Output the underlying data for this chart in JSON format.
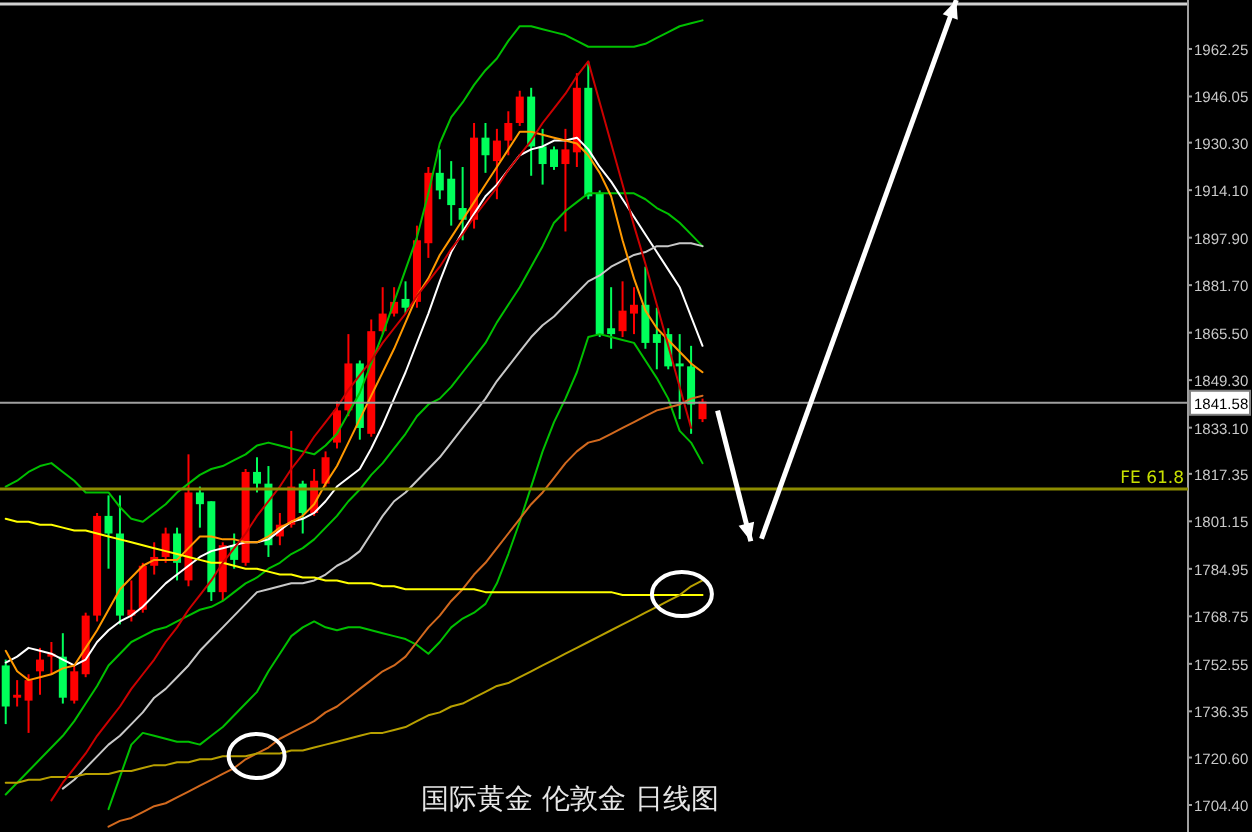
{
  "chart_data": {
    "type": "candlestick",
    "title": "国际黄金 伦敦金 日线图",
    "categories": [
      null,
      null,
      null,
      null,
      null,
      null,
      null,
      null,
      null,
      null,
      null,
      null,
      null,
      null,
      null,
      null,
      null,
      null,
      null,
      null,
      null,
      null,
      null,
      null,
      null,
      null,
      null,
      null,
      null,
      null,
      null,
      null,
      null,
      null,
      null,
      null,
      null,
      null,
      null,
      null,
      null,
      null,
      null,
      null,
      null,
      null,
      null,
      null,
      null,
      null,
      null,
      null,
      null,
      null,
      null,
      null,
      null,
      null,
      null,
      null,
      null,
      null,
      null,
      null,
      null,
      null,
      null,
      null,
      null,
      null,
      null,
      null,
      null,
      null,
      null,
      null,
      null,
      null,
      null,
      null,
      null,
      null,
      null,
      null,
      null,
      null,
      null,
      null,
      null,
      null,
      null,
      null,
      null,
      null,
      null,
      null,
      null,
      null,
      null,
      null,
      null,
      null,
      null,
      null
    ],
    "ohlc": [
      [
        1752,
        1754,
        1732,
        1738
      ],
      [
        1741,
        1747,
        1738,
        1742
      ],
      [
        1740,
        1749,
        1729,
        1747
      ],
      [
        1750,
        1758,
        1742,
        1754
      ],
      [
        1755,
        1760,
        1749,
        1756
      ],
      [
        1755,
        1763,
        1739,
        1741
      ],
      [
        1740,
        1752,
        1739,
        1750
      ],
      [
        1749,
        1770,
        1748,
        1769
      ],
      [
        1769,
        1804,
        1767,
        1803
      ],
      [
        1803,
        1810,
        1785,
        1797
      ],
      [
        1797,
        1810,
        1766,
        1769
      ],
      [
        1769,
        1781,
        1767,
        1771
      ],
      [
        1771,
        1787,
        1770,
        1786
      ],
      [
        1786,
        1794,
        1783,
        1789
      ],
      [
        1789,
        1799,
        1787,
        1797
      ],
      [
        1797,
        1799,
        1781,
        1787
      ],
      [
        1781,
        1824,
        1779,
        1811
      ],
      [
        1811,
        1813,
        1799,
        1807
      ],
      [
        1808,
        1808,
        1774,
        1777
      ],
      [
        1777,
        1794,
        1774,
        1793
      ],
      [
        1793,
        1797,
        1785,
        1788
      ],
      [
        1787,
        1819,
        1786,
        1818
      ],
      [
        1818,
        1823,
        1811,
        1814
      ],
      [
        1814,
        1820,
        1789,
        1793
      ],
      [
        1796,
        1804,
        1793,
        1800
      ],
      [
        1800,
        1832,
        1799,
        1813
      ],
      [
        1814,
        1815,
        1797,
        1804
      ],
      [
        1804,
        1819,
        1803,
        1815
      ],
      [
        1814,
        1825,
        1813,
        1823
      ],
      [
        1828,
        1842,
        1826,
        1839
      ],
      [
        1839,
        1865,
        1837,
        1855
      ],
      [
        1855,
        1856,
        1829,
        1833
      ],
      [
        1831,
        1870,
        1830,
        1866
      ],
      [
        1866,
        1881,
        1865,
        1872
      ],
      [
        1872,
        1881,
        1871,
        1876
      ],
      [
        1877,
        1883,
        1872,
        1874
      ],
      [
        1876,
        1902,
        1874,
        1897
      ],
      [
        1896,
        1922,
        1891,
        1920
      ],
      [
        1920,
        1928,
        1911,
        1914
      ],
      [
        1918,
        1924,
        1902,
        1909
      ],
      [
        1908,
        1922,
        1897,
        1904
      ],
      [
        1904,
        1937,
        1901,
        1932
      ],
      [
        1932,
        1937,
        1920,
        1926
      ],
      [
        1924,
        1935,
        1911,
        1931
      ],
      [
        1931,
        1941,
        1926,
        1937
      ],
      [
        1937,
        1948,
        1936,
        1946
      ],
      [
        1946,
        1949,
        1919,
        1929
      ],
      [
        1929,
        1935,
        1916,
        1923
      ],
      [
        1928,
        1929,
        1921,
        1922
      ],
      [
        1923,
        1935,
        1900,
        1928
      ],
      [
        1927,
        1954,
        1922,
        1949
      ],
      [
        1949,
        1958,
        1911,
        1912
      ],
      [
        1913,
        1914,
        1864,
        1865
      ],
      [
        1867,
        1881,
        1860,
        1865
      ],
      [
        1866,
        1883,
        1864,
        1873
      ],
      [
        1872,
        1881,
        1865,
        1875
      ],
      [
        1875,
        1888,
        1860,
        1862
      ],
      [
        1865,
        1874,
        1853,
        1862
      ],
      [
        1865,
        1867,
        1853,
        1854
      ],
      [
        1855,
        1865,
        1836,
        1854
      ],
      [
        1854,
        1861,
        1831,
        1841
      ],
      [
        1836,
        1843,
        1835,
        1842
      ],
      null,
      null,
      null,
      null,
      null,
      null,
      null,
      null,
      null,
      null,
      null,
      null,
      null,
      null,
      null,
      null,
      null,
      null,
      null,
      null,
      null,
      null,
      null,
      null,
      null,
      null,
      null,
      null,
      null,
      null,
      null,
      null,
      null,
      null,
      null,
      null,
      null,
      null,
      null,
      null,
      null,
      null
    ],
    "colors": [
      "#00ff5a",
      "#ff0000",
      "#ff0000",
      "#ff0000",
      "#ff0000",
      "#00ff5a",
      "#ff0000",
      "#ff0000",
      "#ff0000",
      "#00ff5a",
      "#00ff5a",
      "#ff0000",
      "#ff0000",
      "#ff0000",
      "#ff0000",
      "#00ff5a",
      "#ff0000",
      "#00ff5a",
      "#00ff5a",
      "#ff0000",
      "#00ff5a",
      "#ff0000",
      "#00ff5a",
      "#00ff5a",
      "#ff0000",
      "#ff0000",
      "#00ff5a",
      "#ff0000",
      "#ff0000",
      "#ff0000",
      "#ff0000",
      "#00ff5a",
      "#ff0000",
      "#ff0000",
      "#ff0000",
      "#00ff5a",
      "#ff0000",
      "#ff0000",
      "#00ff5a",
      "#00ff5a",
      "#00ff5a",
      "#ff0000",
      "#00ff5a",
      "#ff0000",
      "#ff0000",
      "#ff0000",
      "#00ff5a",
      "#00ff5a",
      "#00ff5a",
      "#ff0000",
      "#ff0000",
      "#00ff5a",
      "#00ff5a",
      "#00ff5a",
      "#ff0000",
      "#ff0000",
      "#00ff5a",
      "#00ff5a",
      "#00ff5a",
      "#00ff5a",
      "#00ff5a",
      "#ff0000",
      null,
      null,
      null,
      null,
      null,
      null,
      null,
      null,
      null,
      null,
      null,
      null,
      null,
      null,
      null,
      null,
      null,
      null,
      null,
      null,
      null,
      null,
      null,
      null,
      null,
      null,
      null,
      null,
      null,
      null,
      null,
      null,
      null,
      null,
      null,
      null,
      null,
      null,
      null,
      null,
      null,
      null
    ],
    "series": [
      {
        "type": "line",
        "color": "#00c000",
        "values": [
          1813,
          1815,
          1818,
          1820,
          1821,
          1818,
          1815,
          1811,
          1811,
          1811,
          1806,
          1802,
          1801,
          1804,
          1807,
          1811,
          1814,
          1817,
          1819,
          1820,
          1822,
          1824,
          1827,
          1828,
          1827,
          1826,
          1825,
          1824,
          1827,
          1831,
          1838,
          1845,
          1855,
          1865,
          1876,
          1887,
          1898,
          1913,
          1930,
          1939,
          1944,
          1950,
          1955,
          1959,
          1965,
          1970,
          1970,
          1969,
          1968,
          1967,
          1965,
          1963,
          1963,
          1963,
          1963,
          1963,
          1964,
          1966,
          1968,
          1970,
          1971,
          1972,
          null,
          null,
          null,
          null,
          null,
          null,
          null,
          null,
          null,
          null,
          null,
          null,
          null,
          null,
          null,
          null,
          null,
          null,
          null,
          null,
          null,
          null,
          null,
          null,
          null,
          null,
          null,
          null,
          null,
          null,
          null,
          null,
          null,
          null,
          null,
          null,
          null,
          null,
          null,
          null,
          null,
          null
        ]
      },
      {
        "type": "line",
        "color": "#00c000",
        "values": [
          1708,
          1712,
          1716,
          1720,
          1724,
          1728,
          1733,
          1739,
          1745,
          1752,
          1756,
          1760,
          1762,
          1764,
          1765,
          1767,
          1769,
          1771,
          1772,
          1774,
          1777,
          1780,
          1782,
          1785,
          1787,
          1790,
          1792,
          1795,
          1799,
          1803,
          1808,
          1812,
          1817,
          1821,
          1826,
          1831,
          1837,
          1841,
          1843,
          1847,
          1852,
          1857,
          1862,
          1869,
          1875,
          1881,
          1888,
          1895,
          1903,
          1907,
          1910,
          1913,
          1913,
          1913,
          1913,
          1913,
          1911,
          1908,
          1906,
          1903,
          1899,
          1895,
          null,
          null,
          null,
          null,
          null,
          null,
          null,
          null,
          null,
          null,
          null,
          null,
          null,
          null,
          null,
          null,
          null,
          null,
          null,
          null,
          null,
          null,
          null,
          null,
          null,
          null,
          null,
          null,
          null,
          null,
          null,
          null,
          null,
          null,
          null,
          null,
          null,
          null,
          null,
          null,
          null,
          null
        ]
      },
      {
        "type": "line",
        "color": "#00c000",
        "values": [
          null,
          null,
          null,
          null,
          null,
          null,
          null,
          null,
          null,
          1703,
          1714,
          1725,
          1729,
          1728,
          1727,
          1726,
          1726,
          1725,
          1728,
          1731,
          1735,
          1739,
          1743,
          1750,
          1756,
          1762,
          1765,
          1767,
          1765,
          1764,
          1765,
          1765,
          1764,
          1763,
          1762,
          1761,
          1759,
          1756,
          1760,
          1765,
          1768,
          1770,
          1773,
          1780,
          1790,
          1801,
          1813,
          1825,
          1835,
          1843,
          1852,
          1864,
          1865,
          1864,
          1863,
          1862,
          1856,
          1850,
          1843,
          1832,
          1828,
          1821,
          null,
          null,
          null,
          null,
          null,
          null,
          null,
          null,
          null,
          null,
          null,
          null,
          null,
          null,
          null,
          null,
          null,
          null,
          null,
          null,
          null,
          null,
          null,
          null,
          null,
          null,
          null,
          null,
          null,
          null,
          null,
          null,
          null,
          null,
          null,
          null,
          null,
          null,
          null,
          null,
          null,
          null
        ]
      },
      {
        "type": "line",
        "color": "#ffffff",
        "values": [
          1753,
          1755,
          1758,
          1757,
          1756,
          1754,
          1752,
          1754,
          1760,
          1764,
          1767,
          1769,
          1772,
          1776,
          1780,
          1783,
          1786,
          1789,
          1791,
          1792,
          1793,
          1794,
          1794,
          1795,
          1798,
          1801,
          1802,
          1804,
          1808,
          1813,
          1816,
          1819,
          1826,
          1834,
          1843,
          1852,
          1862,
          1872,
          1883,
          1893,
          1900,
          1906,
          1912,
          1916,
          1921,
          1926,
          1928,
          1929,
          1931,
          1931,
          1932,
          1928,
          1922,
          1917,
          1911,
          1905,
          1899,
          1893,
          1887,
          1881,
          1871,
          1861,
          null,
          null,
          null,
          null,
          null,
          null,
          null,
          null,
          null,
          null,
          null,
          null,
          null,
          null,
          null,
          null,
          null,
          null,
          null,
          null,
          null,
          null,
          null,
          null,
          null,
          null,
          null,
          null,
          null,
          null,
          null,
          null,
          null,
          null,
          null,
          null,
          null,
          null,
          null,
          null,
          null,
          null
        ]
      },
      {
        "type": "line",
        "color": "#c8c8c8",
        "values": [
          null,
          null,
          null,
          null,
          null,
          1710,
          1713,
          1717,
          1721,
          1725,
          1728,
          1732,
          1736,
          1741,
          1744,
          1748,
          1752,
          1757,
          1761,
          1765,
          1769,
          1773,
          1777,
          1778,
          1779,
          1780,
          1780,
          1781,
          1783,
          1786,
          1788,
          1791,
          1797,
          1803,
          1808,
          1811,
          1815,
          1819,
          1823,
          1828,
          1833,
          1838,
          1843,
          1849,
          1854,
          1859,
          1864,
          1868,
          1871,
          1875,
          1879,
          1883,
          1885,
          1888,
          1890,
          1892,
          1893,
          1895,
          1895,
          1896,
          1896,
          1895,
          null,
          null,
          null,
          null,
          null,
          null,
          null,
          null,
          null,
          null,
          null,
          null,
          null,
          null,
          null,
          null,
          null,
          null,
          null,
          null,
          null,
          null,
          null,
          null,
          null,
          null,
          null,
          null,
          null,
          null,
          null,
          null,
          null,
          null,
          null,
          null,
          null,
          null,
          null,
          null,
          null,
          null
        ]
      },
      {
        "type": "line",
        "color": "#ff9900",
        "values": [
          1757,
          1750,
          1747,
          1748,
          1749,
          1751,
          1752,
          1758,
          1764,
          1771,
          1778,
          1782,
          1786,
          1788,
          1788,
          1788,
          1792,
          1796,
          1796,
          1795,
          1795,
          1794,
          1794,
          1796,
          1799,
          1801,
          1803,
          1807,
          1814,
          1820,
          1828,
          1836,
          1844,
          1852,
          1860,
          1869,
          1878,
          1884,
          1892,
          1898,
          1904,
          1910,
          1916,
          1922,
          1928,
          1934,
          1934,
          1933,
          1932,
          1931,
          1930,
          1926,
          1920,
          1912,
          1897,
          1884,
          1873,
          1867,
          1863,
          1859,
          1855,
          1852,
          null,
          null,
          null,
          null,
          null,
          null,
          null,
          null,
          null,
          null,
          null,
          null,
          null,
          null,
          null,
          null,
          null,
          null,
          null,
          null,
          null,
          null,
          null,
          null,
          null,
          null,
          null,
          null,
          null,
          null,
          null,
          null,
          null,
          null,
          null,
          null,
          null,
          null,
          null,
          null,
          null,
          null
        ]
      },
      {
        "type": "line",
        "color": "#d2691e",
        "values": [
          null,
          null,
          null,
          null,
          null,
          null,
          null,
          null,
          null,
          1697,
          1699,
          1700,
          1702,
          1704,
          1705,
          1707,
          1709,
          1711,
          1713,
          1715,
          1717,
          1720,
          1722,
          1724,
          1727,
          1729,
          1731,
          1733,
          1736,
          1738,
          1741,
          1744,
          1747,
          1750,
          1752,
          1755,
          1760,
          1765,
          1769,
          1774,
          1778,
          1783,
          1787,
          1792,
          1797,
          1802,
          1807,
          1811,
          1816,
          1821,
          1825,
          1828,
          1829,
          1831,
          1833,
          1835,
          1837,
          1839,
          1840,
          1841,
          1843,
          1844,
          null,
          null,
          null,
          null,
          null,
          null,
          null,
          null,
          null,
          null,
          null,
          null,
          null,
          null,
          null,
          null,
          null,
          null,
          null,
          null,
          null,
          null,
          null,
          null,
          null,
          null,
          null,
          null,
          null,
          null,
          null,
          null,
          null,
          null,
          null,
          null,
          null,
          null,
          null,
          null,
          null,
          null
        ]
      },
      {
        "type": "line",
        "color": "#ffff00",
        "values": [
          1802,
          1801,
          1801,
          1800,
          1800,
          1799,
          1798,
          1798,
          1797,
          1796,
          1795,
          1794,
          1793,
          1792,
          1791,
          1790,
          1789,
          1788,
          1787,
          1787,
          1786,
          1785,
          1785,
          1784,
          1783,
          1783,
          1782,
          1782,
          1781,
          1781,
          1780,
          1780,
          1780,
          1779,
          1779,
          1778,
          1778,
          1778,
          1778,
          1778,
          1778,
          1778,
          1777,
          1777,
          1777,
          1777,
          1777,
          1777,
          1777,
          1777,
          1777,
          1777,
          1777,
          1777,
          1776,
          1776,
          1776,
          1776,
          1776,
          1776,
          1776,
          1776,
          null,
          null,
          null,
          null,
          null,
          null,
          null,
          null,
          null,
          null,
          null,
          null,
          null,
          null,
          null,
          null,
          null,
          null,
          null,
          null,
          null,
          null,
          null,
          null,
          null,
          null,
          null,
          null,
          null,
          null,
          null,
          null,
          null,
          null,
          null,
          null,
          null,
          null,
          null,
          null,
          null,
          null
        ]
      },
      {
        "type": "line",
        "color": "#b8a000",
        "values": [
          1712,
          1712,
          1713,
          1713,
          1714,
          1714,
          1714,
          1715,
          1715,
          1715,
          1716,
          1716,
          1717,
          1718,
          1718,
          1719,
          1719,
          1720,
          1720,
          1721,
          1721,
          1721,
          1722,
          1722,
          1722,
          1723,
          1723,
          1724,
          1725,
          1726,
          1727,
          1728,
          1729,
          1729,
          1730,
          1731,
          1733,
          1735,
          1736,
          1738,
          1739,
          1741,
          1743,
          1745,
          1746,
          1748,
          1750,
          1752,
          1754,
          1756,
          1758,
          1760,
          1762,
          1764,
          1766,
          1768,
          1770,
          1772,
          1774,
          1776,
          1779,
          1781,
          null,
          null,
          null,
          null,
          null,
          null,
          null,
          null,
          null,
          null,
          null,
          null,
          null,
          null,
          null,
          null,
          null,
          null,
          null,
          null,
          null,
          null,
          null,
          null,
          null,
          null,
          null,
          null,
          null,
          null,
          null,
          null,
          null,
          null,
          null,
          null,
          null,
          null,
          null,
          null,
          null,
          null
        ]
      },
      {
        "type": "line",
        "color": "#cc0000",
        "values": [
          null,
          null,
          null,
          null,
          1706,
          1712,
          1717,
          1722,
          1728,
          1733,
          1738,
          1744,
          1749,
          1754,
          1760,
          1765,
          1771,
          1776,
          1781,
          1787,
          1792,
          1797,
          1803,
          1808,
          1813,
          1819,
          1824,
          1830,
          1835,
          1840,
          1846,
          1851,
          1856,
          1862,
          1867,
          1872,
          1878,
          1883,
          1888,
          1894,
          1899,
          1905,
          1910,
          1915,
          1921,
          1926,
          1931,
          1937,
          1942,
          1947,
          1953,
          1958,
          1944,
          1930,
          1916,
          1902,
          1889,
          1875,
          1861,
          1847,
          1833,
          null,
          null,
          null,
          null,
          null,
          null,
          null,
          null,
          null,
          null,
          null,
          null,
          null,
          null,
          null,
          null,
          null,
          null,
          null,
          null,
          null,
          null,
          null,
          null,
          null,
          null,
          null,
          null,
          null,
          null,
          null,
          null,
          null,
          null,
          null,
          null,
          null,
          null,
          null,
          null,
          null,
          null,
          null
        ]
      }
    ],
    "ylim": [
      1695.2,
      1976.9
    ],
    "yticks": [
      {
        "value": 1962.25,
        "label": "1962.25"
      },
      {
        "value": 1946.05,
        "label": "1946.05"
      },
      {
        "value": 1930.3,
        "label": "1930.30"
      },
      {
        "value": 1914.1,
        "label": "1914.10"
      },
      {
        "value": 1897.9,
        "label": "1897.90"
      },
      {
        "value": 1881.7,
        "label": "1881.70"
      },
      {
        "value": 1865.5,
        "label": "1865.50"
      },
      {
        "value": 1849.3,
        "label": "1849.30"
      },
      {
        "value": 1833.1,
        "label": "1833.10"
      },
      {
        "value": 1817.35,
        "label": "1817.35"
      },
      {
        "value": 1801.15,
        "label": "1801.15"
      },
      {
        "value": 1784.95,
        "label": "1784.95"
      },
      {
        "value": 1768.75,
        "label": "1768.75"
      },
      {
        "value": 1752.55,
        "label": "1752.55"
      },
      {
        "value": 1736.35,
        "label": "1736.35"
      },
      {
        "value": 1720.6,
        "label": "1720.60"
      },
      {
        "value": 1704.4,
        "label": "1704.40"
      }
    ],
    "ref_lines": [
      {
        "axis": "y",
        "value": 1841.58,
        "label": "1841.58",
        "color": "#a0a0a0"
      },
      {
        "axis": "y",
        "value": 1812.2,
        "label": "FE 61.8",
        "color": "#8c8c00"
      }
    ],
    "tick_labels": "y"
  }
}
